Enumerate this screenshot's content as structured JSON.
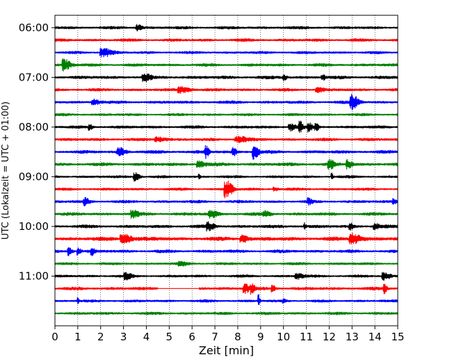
{
  "chart_data": {
    "type": "line",
    "title": "",
    "xlabel": "Zeit  [min]",
    "ylabel": "UTC (Lokalzeit = UTC + 01:00)",
    "xlim": [
      0,
      15
    ],
    "x_ticks": [
      0,
      1,
      2,
      3,
      4,
      5,
      6,
      7,
      8,
      9,
      10,
      11,
      12,
      13,
      14,
      15
    ],
    "x_tick_labels": [
      "0",
      "1",
      "2",
      "3",
      "4",
      "5",
      "6",
      "7",
      "8",
      "9",
      "10",
      "11",
      "12",
      "13",
      "14",
      "15"
    ],
    "y_tick_labels": [
      "06:00",
      "07:00",
      "08:00",
      "09:00",
      "10:00",
      "11:00"
    ],
    "y_tick_rows": [
      0,
      4,
      8,
      12,
      16,
      20
    ],
    "row_interval_minutes": 15,
    "grid": {
      "x": true,
      "style": "dotted"
    },
    "trace_colors": [
      "#000000",
      "#ff0000",
      "#0000ff",
      "#008000"
    ],
    "series": [
      {
        "start": "06:00",
        "color": "#000000",
        "amp": 2.2,
        "events": [
          {
            "x": 3.6,
            "a": 4,
            "w": 0.15
          }
        ]
      },
      {
        "start": "06:15",
        "color": "#ff0000",
        "amp": 2.2,
        "events": []
      },
      {
        "start": "06:30",
        "color": "#0000ff",
        "amp": 2.0,
        "events": [
          {
            "x": 2.1,
            "a": 6,
            "w": 0.3
          }
        ]
      },
      {
        "start": "06:45",
        "color": "#008000",
        "amp": 2.2,
        "events": [
          {
            "x": 0.4,
            "a": 8,
            "w": 0.2
          }
        ]
      },
      {
        "start": "07:00",
        "color": "#000000",
        "amp": 2.5,
        "events": [
          {
            "x": 3.9,
            "a": 5,
            "w": 0.2
          },
          {
            "x": 10.0,
            "a": 4,
            "w": 0.1
          },
          {
            "x": 11.7,
            "a": 4,
            "w": 0.1
          }
        ]
      },
      {
        "start": "07:15",
        "color": "#ff0000",
        "amp": 2.2,
        "events": [
          {
            "x": 5.5,
            "a": 4,
            "w": 0.3
          },
          {
            "x": 11.5,
            "a": 3,
            "w": 0.2
          }
        ]
      },
      {
        "start": "07:30",
        "color": "#0000ff",
        "amp": 2.3,
        "events": [
          {
            "x": 1.7,
            "a": 4,
            "w": 0.2
          },
          {
            "x": 13.0,
            "a": 10,
            "w": 0.2
          }
        ]
      },
      {
        "start": "07:45",
        "color": "#008000",
        "amp": 2.0,
        "events": []
      },
      {
        "start": "08:00",
        "color": "#000000",
        "amp": 2.2,
        "events": [
          {
            "x": 1.5,
            "a": 4,
            "w": 0.1
          },
          {
            "x": 10.3,
            "a": 5,
            "w": 0.2
          },
          {
            "x": 10.7,
            "a": 8,
            "w": 0.1
          },
          {
            "x": 11.1,
            "a": 6,
            "w": 0.1
          },
          {
            "x": 11.4,
            "a": 5,
            "w": 0.1
          }
        ]
      },
      {
        "start": "08:15",
        "color": "#ff0000",
        "amp": 2.3,
        "events": [
          {
            "x": 4.5,
            "a": 3,
            "w": 0.3
          },
          {
            "x": 8.0,
            "a": 4,
            "w": 0.3
          }
        ]
      },
      {
        "start": "08:30",
        "color": "#0000ff",
        "amp": 2.5,
        "events": [
          {
            "x": 2.8,
            "a": 6,
            "w": 0.2
          },
          {
            "x": 6.6,
            "a": 8,
            "w": 0.1
          },
          {
            "x": 7.8,
            "a": 6,
            "w": 0.1
          },
          {
            "x": 8.7,
            "a": 10,
            "w": 0.15
          }
        ]
      },
      {
        "start": "08:45",
        "color": "#008000",
        "amp": 2.6,
        "events": [
          {
            "x": 6.3,
            "a": 4,
            "w": 0.2
          },
          {
            "x": 12.0,
            "a": 7,
            "w": 0.15
          },
          {
            "x": 12.8,
            "a": 6,
            "w": 0.15
          }
        ]
      },
      {
        "start": "09:00",
        "color": "#000000",
        "amp": 2.0,
        "events": [
          {
            "x": 3.5,
            "a": 6,
            "w": 0.15
          },
          {
            "x": 6.3,
            "a": 4,
            "w": 0.05
          },
          {
            "x": 12.1,
            "a": 5,
            "w": 0.05
          }
        ]
      },
      {
        "start": "09:15",
        "color": "#ff0000",
        "amp": 2.0,
        "events": [
          {
            "x": 7.5,
            "a": 12,
            "w": 0.2
          },
          {
            "x": 9.6,
            "a": 3,
            "w": 0.1
          }
        ]
      },
      {
        "start": "09:30",
        "color": "#0000ff",
        "amp": 2.2,
        "events": [
          {
            "x": 1.3,
            "a": 5,
            "w": 0.15
          },
          {
            "x": 11.1,
            "a": 4,
            "w": 0.1
          },
          {
            "x": 14.8,
            "a": 4,
            "w": 0.1
          }
        ]
      },
      {
        "start": "09:45",
        "color": "#008000",
        "amp": 2.4,
        "events": [
          {
            "x": 3.4,
            "a": 5,
            "w": 0.2
          },
          {
            "x": 6.8,
            "a": 5,
            "w": 0.2
          },
          {
            "x": 9.2,
            "a": 3,
            "w": 0.2
          }
        ]
      },
      {
        "start": "10:00",
        "color": "#000000",
        "amp": 2.5,
        "events": [
          {
            "x": 6.7,
            "a": 5,
            "w": 0.2
          },
          {
            "x": 10.9,
            "a": 5,
            "w": 0.05
          },
          {
            "x": 12.9,
            "a": 5,
            "w": 0.1
          },
          {
            "x": 14.0,
            "a": 4,
            "w": 0.15
          }
        ]
      },
      {
        "start": "10:15",
        "color": "#ff0000",
        "amp": 3.0,
        "events": [
          {
            "x": 3.0,
            "a": 6,
            "w": 0.3
          },
          {
            "x": 8.2,
            "a": 5,
            "w": 0.2
          },
          {
            "x": 13.0,
            "a": 7,
            "w": 0.3
          }
        ]
      },
      {
        "start": "10:30",
        "color": "#0000ff",
        "amp": 2.4,
        "events": [
          {
            "x": 0.6,
            "a": 7,
            "w": 0.1
          },
          {
            "x": 1.0,
            "a": 5,
            "w": 0.1
          },
          {
            "x": 1.6,
            "a": 5,
            "w": 0.1
          }
        ]
      },
      {
        "start": "10:45",
        "color": "#008000",
        "amp": 2.0,
        "events": [
          {
            "x": 5.5,
            "a": 3,
            "w": 0.2
          }
        ]
      },
      {
        "start": "11:00",
        "color": "#000000",
        "amp": 2.0,
        "events": [
          {
            "x": 3.1,
            "a": 4,
            "w": 0.2
          },
          {
            "x": 10.6,
            "a": 4,
            "w": 0.2
          },
          {
            "x": 14.4,
            "a": 5,
            "w": 0.2
          }
        ]
      },
      {
        "start": "11:15",
        "color": "#ff0000",
        "amp": 2.4,
        "gap": [
          4.5,
          6.3
        ],
        "events": [
          {
            "x": 8.3,
            "a": 7,
            "w": 0.15
          },
          {
            "x": 8.6,
            "a": 6,
            "w": 0.1
          },
          {
            "x": 9.5,
            "a": 5,
            "w": 0.1
          },
          {
            "x": 14.4,
            "a": 6,
            "w": 0.1
          }
        ]
      },
      {
        "start": "11:30",
        "color": "#0000ff",
        "amp": 2.0,
        "events": [
          {
            "x": 1.0,
            "a": 4,
            "w": 0.05
          },
          {
            "x": 8.9,
            "a": 9,
            "w": 0.05
          },
          {
            "x": 10.0,
            "a": 3,
            "w": 0.1
          }
        ]
      },
      {
        "start": "11:45",
        "color": "#008000",
        "amp": 2.1,
        "events": []
      }
    ]
  }
}
